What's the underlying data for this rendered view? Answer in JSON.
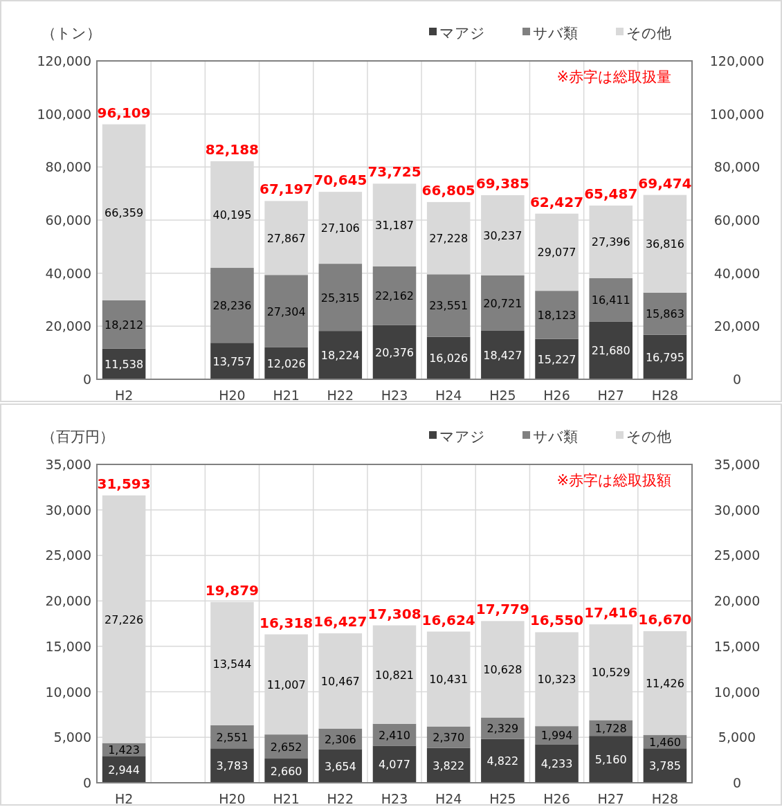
{
  "chart_data": [
    {
      "type": "bar",
      "stacked": true,
      "ylabel": "（トン）",
      "annotations": [
        "※赤字は総取扱量"
      ],
      "legend": "top right",
      "grid": true,
      "categories": [
        "H2",
        null,
        "H20",
        "H21",
        "H22",
        "H23",
        "H24",
        "H25",
        "H26",
        "H27",
        "H28"
      ],
      "ylim": [
        0,
        120000
      ],
      "yticks": [
        {
          "value": 0,
          "label": "0"
        },
        {
          "value": 20000,
          "label": "20,000"
        },
        {
          "value": 40000,
          "label": "40,000"
        },
        {
          "value": 60000,
          "label": "60,000"
        },
        {
          "value": 80000,
          "label": "80,000"
        },
        {
          "value": 100000,
          "label": "100,000"
        },
        {
          "value": 120000,
          "label": "120,000"
        }
      ],
      "y2lim": [
        0,
        120000
      ],
      "y2ticks": [
        {
          "value": 0,
          "label": "0"
        },
        {
          "value": 20000,
          "label": "20,000"
        },
        {
          "value": 40000,
          "label": "40,000"
        },
        {
          "value": 60000,
          "label": "60,000"
        },
        {
          "value": 80000,
          "label": "80,000"
        },
        {
          "value": 100000,
          "label": "100,000"
        },
        {
          "value": 120000,
          "label": "120,000"
        }
      ],
      "series": [
        {
          "name": "マアジ",
          "color": "#404040",
          "values": [
            11538,
            null,
            13757,
            12026,
            18224,
            20376,
            16026,
            18427,
            15227,
            21680,
            16795
          ],
          "value_labels": [
            "11,538",
            null,
            "13,757",
            "12,026",
            "18,224",
            "20,376",
            "16,026",
            "18,427",
            "15,227",
            "21,680",
            "16,795"
          ]
        },
        {
          "name": "サバ類",
          "color": "#808080",
          "values": [
            18212,
            null,
            28236,
            27304,
            25315,
            22162,
            23551,
            20721,
            18123,
            16411,
            15863
          ],
          "value_labels": [
            "18,212",
            null,
            "28,236",
            "27,304",
            "25,315",
            "22,162",
            "23,551",
            "20,721",
            "18,123",
            "16,411",
            "15,863"
          ]
        },
        {
          "name": "その他",
          "color": "#d9d9d9",
          "values": [
            66359,
            null,
            40195,
            27867,
            27106,
            31187,
            27228,
            30237,
            29077,
            27396,
            36816
          ],
          "value_labels": [
            "66,359",
            null,
            "40,195",
            "27,867",
            "27,106",
            "31,187",
            "27,228",
            "30,237",
            "29,077",
            "27,396",
            "36,816"
          ]
        }
      ],
      "totals": [
        "96,109",
        null,
        "82,188",
        "67,197",
        "70,645",
        "73,725",
        "66,805",
        "69,385",
        "62,427",
        "65,487",
        "69,474"
      ]
    },
    {
      "type": "bar",
      "stacked": true,
      "ylabel": "（百万円）",
      "annotations": [
        "※赤字は総取扱額"
      ],
      "legend": "top right",
      "grid": true,
      "categories": [
        "H2",
        null,
        "H20",
        "H21",
        "H22",
        "H23",
        "H24",
        "H25",
        "H26",
        "H27",
        "H28"
      ],
      "ylim": [
        0,
        35000
      ],
      "yticks": [
        {
          "value": 0,
          "label": "0"
        },
        {
          "value": 5000,
          "label": "5,000"
        },
        {
          "value": 10000,
          "label": "10,000"
        },
        {
          "value": 15000,
          "label": "15,000"
        },
        {
          "value": 20000,
          "label": "20,000"
        },
        {
          "value": 25000,
          "label": "25,000"
        },
        {
          "value": 30000,
          "label": "30,000"
        },
        {
          "value": 35000,
          "label": "35,000"
        }
      ],
      "y2lim": [
        0,
        35000
      ],
      "y2ticks": [
        {
          "value": 0,
          "label": "0"
        },
        {
          "value": 5000,
          "label": "5,000"
        },
        {
          "value": 10000,
          "label": "10,000"
        },
        {
          "value": 15000,
          "label": "15,000"
        },
        {
          "value": 20000,
          "label": "20,000"
        },
        {
          "value": 25000,
          "label": "25,000"
        },
        {
          "value": 30000,
          "label": "30,000"
        },
        {
          "value": 35000,
          "label": "35,000"
        }
      ],
      "series": [
        {
          "name": "マアジ",
          "color": "#404040",
          "values": [
            2944,
            null,
            3783,
            2660,
            3654,
            4077,
            3822,
            4822,
            4233,
            5160,
            3785
          ],
          "value_labels": [
            "2,944",
            null,
            "3,783",
            "2,660",
            "3,654",
            "4,077",
            "3,822",
            "4,822",
            "4,233",
            "5,160",
            "3,785"
          ]
        },
        {
          "name": "サバ類",
          "color": "#808080",
          "values": [
            1423,
            null,
            2551,
            2652,
            2306,
            2410,
            2370,
            2329,
            1994,
            1728,
            1460
          ],
          "value_labels": [
            "1,423",
            null,
            "2,551",
            "2,652",
            "2,306",
            "2,410",
            "2,370",
            "2,329",
            "1,994",
            "1,728",
            "1,460"
          ]
        },
        {
          "name": "その他",
          "color": "#d9d9d9",
          "values": [
            27226,
            null,
            13544,
            11007,
            10467,
            10821,
            10431,
            10628,
            10323,
            10529,
            11426
          ],
          "value_labels": [
            "27,226",
            null,
            "13,544",
            "11,007",
            "10,467",
            "10,821",
            "10,431",
            "10,628",
            "10,323",
            "10,529",
            "11,426"
          ]
        }
      ],
      "totals": [
        "31,593",
        null,
        "19,879",
        "16,318",
        "16,427",
        "17,308",
        "16,624",
        "17,779",
        "16,550",
        "17,416",
        "16,670"
      ]
    }
  ]
}
